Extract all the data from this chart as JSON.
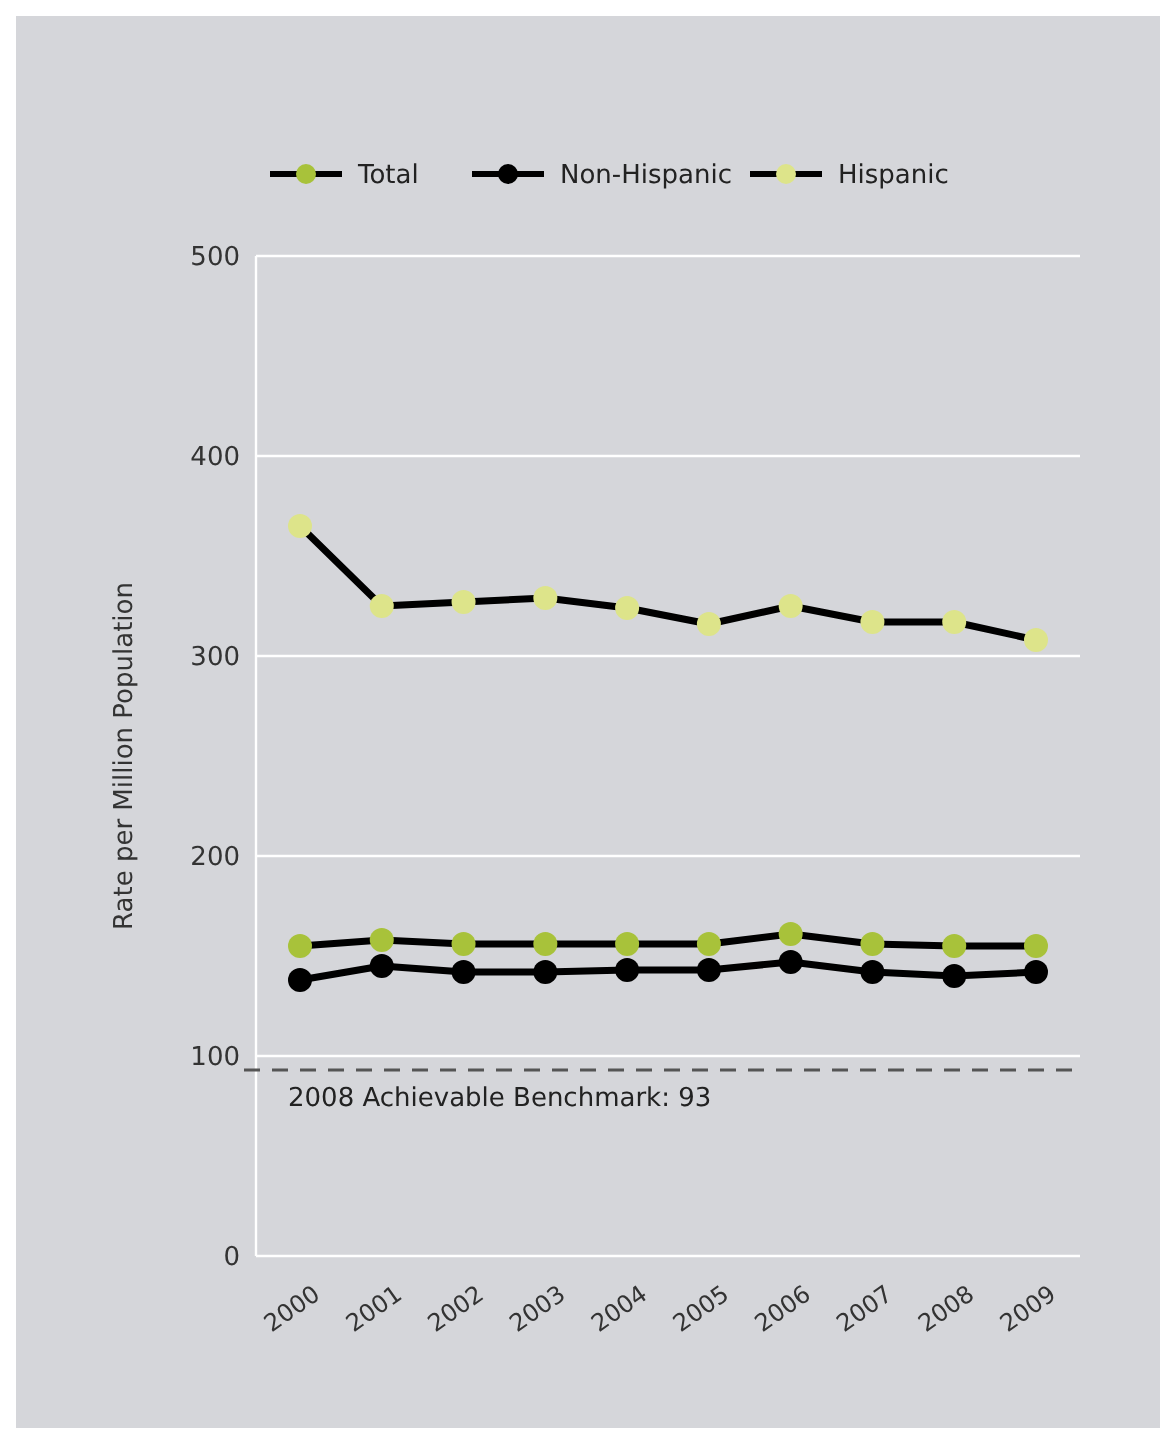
{
  "chart_data": {
    "type": "line",
    "ylabel": "Rate per Million Population",
    "categories": [
      "2000",
      "2001",
      "2002",
      "2003",
      "2004",
      "2005",
      "2006",
      "2007",
      "2008",
      "2009"
    ],
    "series": [
      {
        "name": "Total",
        "color": "#a8c23a",
        "values": [
          155,
          158,
          156,
          156,
          156,
          156,
          161,
          156,
          155,
          155
        ]
      },
      {
        "name": "Non-Hispanic",
        "color": "#000000",
        "values": [
          138,
          145,
          142,
          142,
          143,
          143,
          147,
          142,
          140,
          142
        ]
      },
      {
        "name": "Hispanic",
        "color": "#dde48a",
        "values": [
          365,
          325,
          327,
          329,
          324,
          316,
          325,
          317,
          317,
          308
        ]
      }
    ],
    "ylim": [
      0,
      500
    ],
    "yticks": [
      0,
      100,
      200,
      300,
      400,
      500
    ],
    "grid": "y",
    "legend": "top",
    "marker": "circle",
    "line_style": "solid",
    "ref_lines": [
      {
        "axis": "y",
        "value": 93,
        "label": "2008 Achievable Benchmark: 93",
        "color": "#555555",
        "line_style": "dashed"
      }
    ]
  }
}
